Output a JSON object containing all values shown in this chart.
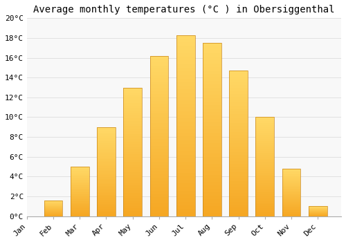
{
  "months": [
    "Jan",
    "Feb",
    "Mar",
    "Apr",
    "May",
    "Jun",
    "Jul",
    "Aug",
    "Sep",
    "Oct",
    "Nov",
    "Dec"
  ],
  "temperatures": [
    0.0,
    1.6,
    5.0,
    9.0,
    13.0,
    16.2,
    18.3,
    17.5,
    14.7,
    10.0,
    4.8,
    1.0
  ],
  "bar_color_bottom": "#F5A623",
  "bar_color_top": "#FFD966",
  "bar_edge_color": "#C8861A",
  "title": "Average monthly temperatures (°C ) in Obersiggenthal",
  "ylim": [
    0,
    20
  ],
  "yticks": [
    0,
    2,
    4,
    6,
    8,
    10,
    12,
    14,
    16,
    18,
    20
  ],
  "ytick_labels": [
    "0°C",
    "2°C",
    "4°C",
    "6°C",
    "8°C",
    "10°C",
    "12°C",
    "14°C",
    "16°C",
    "18°C",
    "20°C"
  ],
  "background_color": "#FFFFFF",
  "plot_bg_color": "#F8F8F8",
  "grid_color": "#DDDDDD",
  "title_fontsize": 10,
  "tick_fontsize": 8,
  "font_family": "monospace"
}
